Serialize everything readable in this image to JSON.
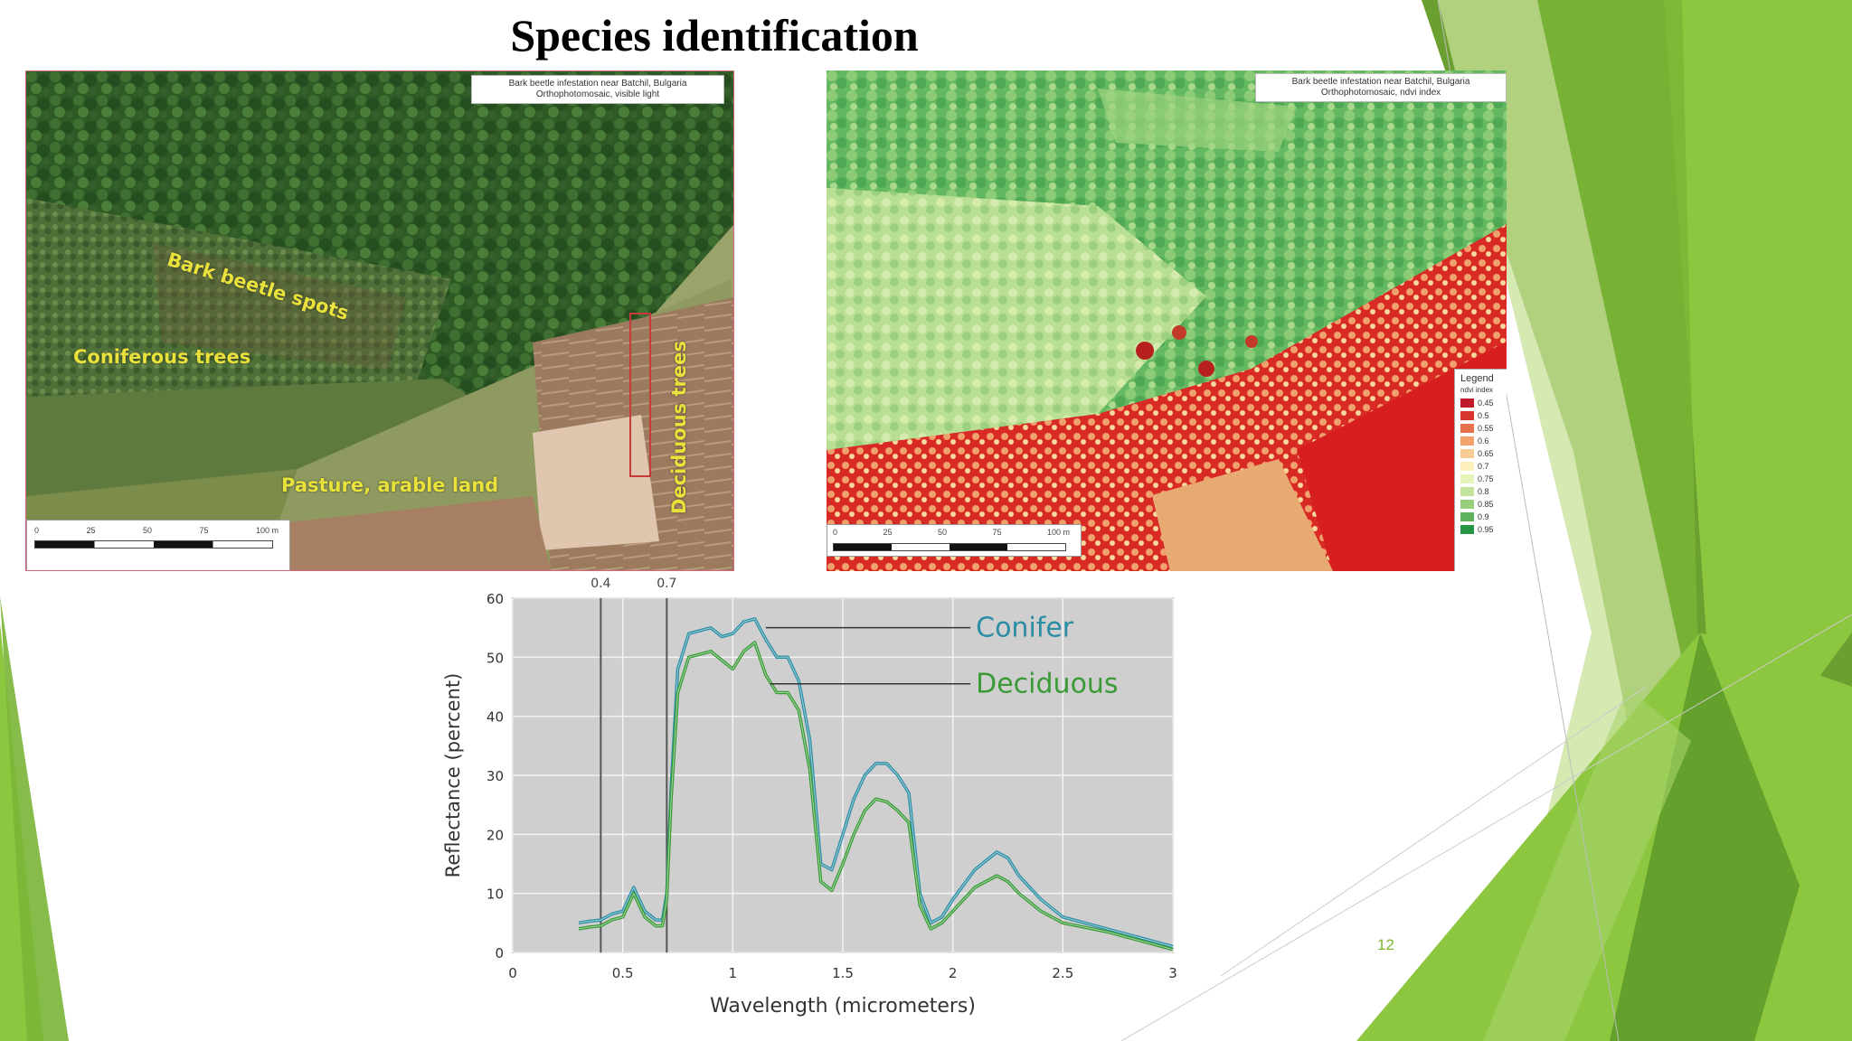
{
  "slide": {
    "title": "Species identification",
    "page_number": "12",
    "accent_colors": [
      "#8dc63f",
      "#6ba030",
      "#4e8a1e",
      "#c8e29a"
    ]
  },
  "ortho_left": {
    "caption_line1": "Bark beetle infestation near Batchil, Bulgaria",
    "caption_line2": "Orthophotomosaic, visible light",
    "labels": {
      "bark_beetle": "Bark beetle spots",
      "coniferous": "Coniferous trees",
      "pasture": "Pasture, arable land",
      "deciduous": "Deciduous trees"
    },
    "scale_ticks": [
      "0",
      "25",
      "50",
      "75",
      "100 m"
    ]
  },
  "ortho_right": {
    "caption_line1": "Bark beetle infestation near Batchil, Bulgaria",
    "caption_line2": "Orthophotomosaic, ndvi index",
    "scale_ticks": [
      "0",
      "25",
      "50",
      "75",
      "100 m"
    ],
    "legend_title": "Legend",
    "legend_subtitle": "ndvi index",
    "legend_items": [
      {
        "label": "0.45",
        "color": "#c0192a"
      },
      {
        "label": "0.5",
        "color": "#d7362e"
      },
      {
        "label": "0.55",
        "color": "#e8714d"
      },
      {
        "label": "0.6",
        "color": "#f2a36d"
      },
      {
        "label": "0.65",
        "color": "#f8cd93"
      },
      {
        "label": "0.7",
        "color": "#fdf0bd"
      },
      {
        "label": "0.75",
        "color": "#e6f3b8"
      },
      {
        "label": "0.8",
        "color": "#c4e39a"
      },
      {
        "label": "0.85",
        "color": "#97ce7c"
      },
      {
        "label": "0.9",
        "color": "#5fb35d"
      },
      {
        "label": "0.95",
        "color": "#269642"
      }
    ]
  },
  "chart_data": {
    "type": "line",
    "title": "",
    "xlabel": "Wavelength (micrometers)",
    "ylabel": "Reflectance (percent)",
    "xlim": [
      0,
      3
    ],
    "ylim": [
      0,
      60
    ],
    "xticks": [
      "0",
      "0.5",
      "1",
      "1.5",
      "2",
      "2.5",
      "3"
    ],
    "yticks": [
      "0",
      "10",
      "20",
      "30",
      "40",
      "50",
      "60"
    ],
    "grid": true,
    "legend_placement": "labels with leader lines, upper right",
    "markers": [
      {
        "x": 0.4,
        "label": "0.4"
      },
      {
        "x": 0.7,
        "label": "0.7"
      }
    ],
    "series": [
      {
        "name": "Conifer",
        "color": "#2b8ca6",
        "x": [
          0.3,
          0.35,
          0.4,
          0.45,
          0.5,
          0.55,
          0.6,
          0.65,
          0.68,
          0.7,
          0.72,
          0.75,
          0.8,
          0.9,
          0.95,
          1.0,
          1.05,
          1.1,
          1.15,
          1.2,
          1.25,
          1.3,
          1.35,
          1.4,
          1.45,
          1.5,
          1.55,
          1.6,
          1.65,
          1.7,
          1.75,
          1.8,
          1.85,
          1.9,
          1.95,
          2.0,
          2.1,
          2.2,
          2.25,
          2.3,
          2.4,
          2.5,
          2.7,
          2.9,
          3.0
        ],
        "y": [
          5,
          5.3,
          5.5,
          6.5,
          7,
          11,
          7,
          5.5,
          5.5,
          10,
          28,
          48,
          54,
          55,
          53.5,
          54,
          56,
          56.5,
          53,
          50,
          50,
          46,
          36,
          15,
          14,
          20,
          26,
          30,
          32,
          32,
          30,
          27,
          10,
          5,
          6,
          9,
          14,
          17,
          16,
          13,
          9,
          6,
          4,
          2,
          1
        ]
      },
      {
        "name": "Deciduous",
        "color": "#3a9a36",
        "x": [
          0.3,
          0.35,
          0.4,
          0.45,
          0.5,
          0.55,
          0.6,
          0.65,
          0.68,
          0.7,
          0.72,
          0.75,
          0.8,
          0.9,
          0.95,
          1.0,
          1.05,
          1.1,
          1.15,
          1.2,
          1.25,
          1.3,
          1.35,
          1.4,
          1.45,
          1.5,
          1.55,
          1.6,
          1.65,
          1.7,
          1.75,
          1.8,
          1.85,
          1.9,
          1.95,
          2.0,
          2.1,
          2.2,
          2.25,
          2.3,
          2.4,
          2.5,
          2.7,
          2.9,
          3.0
        ],
        "y": [
          4,
          4.3,
          4.5,
          5.5,
          6,
          10,
          6,
          4.5,
          4.5,
          9,
          26,
          44,
          50,
          51,
          49.5,
          48,
          51,
          52.5,
          47,
          44,
          44,
          41,
          31,
          12,
          10.5,
          15,
          20,
          24,
          26,
          25.5,
          24,
          22,
          8,
          4,
          5,
          7,
          11,
          13,
          12,
          10,
          7,
          5,
          3.5,
          1.5,
          0.5
        ]
      }
    ]
  }
}
